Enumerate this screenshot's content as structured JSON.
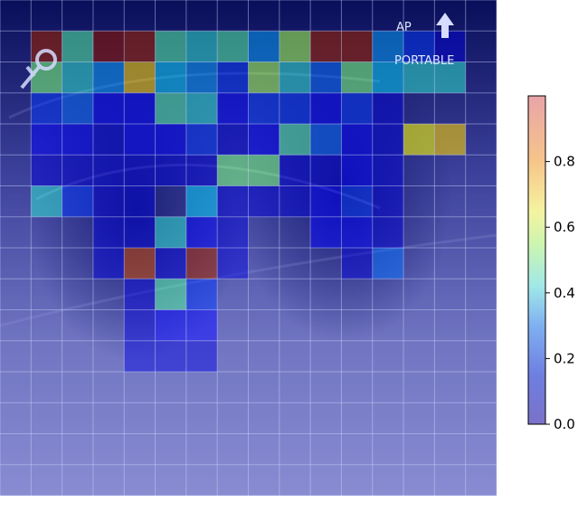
{
  "image": {
    "grid_rows": 16,
    "grid_cols": 16,
    "overlay_labels": {
      "view": "AP",
      "portable": "PORTABLE"
    },
    "icons": [
      "up-arrow-icon",
      "marker-tool-icon"
    ]
  },
  "heatmap_values": [
    [
      0.05,
      0.05,
      0.05,
      0.05,
      0.05,
      0.05,
      0.05,
      0.05,
      0.05,
      0.05,
      0.05,
      0.05,
      0.05,
      0.05,
      0.05,
      0.05
    ],
    [
      0.05,
      0.95,
      0.45,
      0.98,
      0.95,
      0.45,
      0.4,
      0.45,
      0.3,
      0.55,
      0.95,
      0.95,
      0.3,
      0.2,
      0.1,
      0.05
    ],
    [
      0.05,
      0.5,
      0.4,
      0.3,
      0.7,
      0.35,
      0.3,
      0.2,
      0.55,
      0.4,
      0.25,
      0.5,
      0.35,
      0.4,
      0.4,
      0.05
    ],
    [
      0.05,
      0.2,
      0.25,
      0.15,
      0.15,
      0.45,
      0.4,
      0.15,
      0.2,
      0.2,
      0.15,
      0.2,
      0.1,
      0.05,
      0.05,
      0.05
    ],
    [
      0.05,
      0.15,
      0.15,
      0.1,
      0.15,
      0.15,
      0.2,
      0.1,
      0.15,
      0.45,
      0.25,
      0.15,
      0.1,
      0.65,
      0.7,
      0.05
    ],
    [
      0.05,
      0.1,
      0.1,
      0.1,
      0.1,
      0.1,
      0.1,
      0.5,
      0.5,
      0.1,
      0.1,
      0.15,
      0.1,
      0.05,
      0.05,
      0.05
    ],
    [
      0.05,
      0.4,
      0.2,
      0.1,
      0.1,
      0.05,
      0.35,
      0.1,
      0.1,
      0.1,
      0.15,
      0.2,
      0.1,
      0.05,
      0.05,
      0.05
    ],
    [
      0.05,
      0.05,
      0.05,
      0.1,
      0.1,
      0.4,
      0.15,
      0.1,
      0.05,
      0.05,
      0.15,
      0.15,
      0.1,
      0.05,
      0.05,
      0.05
    ],
    [
      0.05,
      0.05,
      0.05,
      0.1,
      0.9,
      0.1,
      0.95,
      0.1,
      0.05,
      0.05,
      0.05,
      0.1,
      0.25,
      0.05,
      0.05,
      0.05
    ],
    [
      0.05,
      0.05,
      0.05,
      0.05,
      0.1,
      0.45,
      0.2,
      0.05,
      0.05,
      0.05,
      0.05,
      0.05,
      0.05,
      0.05,
      0.05,
      0.05
    ],
    [
      0.05,
      0.05,
      0.05,
      0.05,
      0.1,
      0.15,
      0.15,
      0.05,
      0.05,
      0.05,
      0.05,
      0.05,
      0.05,
      0.05,
      0.05,
      0.05
    ],
    [
      0.05,
      0.05,
      0.05,
      0.05,
      0.1,
      0.1,
      0.1,
      0.05,
      0.05,
      0.05,
      0.05,
      0.05,
      0.05,
      0.05,
      0.05,
      0.05
    ],
    [
      0.05,
      0.05,
      0.05,
      0.05,
      0.05,
      0.05,
      0.05,
      0.05,
      0.05,
      0.05,
      0.05,
      0.05,
      0.05,
      0.05,
      0.05,
      0.05
    ],
    [
      0.05,
      0.05,
      0.05,
      0.05,
      0.05,
      0.05,
      0.05,
      0.05,
      0.05,
      0.05,
      0.05,
      0.05,
      0.05,
      0.05,
      0.05,
      0.05
    ],
    [
      0.05,
      0.05,
      0.05,
      0.05,
      0.05,
      0.05,
      0.05,
      0.05,
      0.05,
      0.05,
      0.05,
      0.05,
      0.05,
      0.05,
      0.05,
      0.05
    ],
    [
      0.05,
      0.05,
      0.05,
      0.05,
      0.05,
      0.05,
      0.05,
      0.05,
      0.05,
      0.05,
      0.05,
      0.05,
      0.05,
      0.05,
      0.05,
      0.05
    ]
  ],
  "colorbar": {
    "range": [
      0.0,
      1.0
    ],
    "ticks": [
      "0.0",
      "0.2",
      "0.4",
      "0.6",
      "0.8"
    ],
    "tick_values": [
      0.0,
      0.2,
      0.4,
      0.6,
      0.8
    ]
  },
  "colors": {
    "background_dark": "#0a1452",
    "background_light": "#9ea3d2",
    "grid_line": "#cfd4ff"
  }
}
